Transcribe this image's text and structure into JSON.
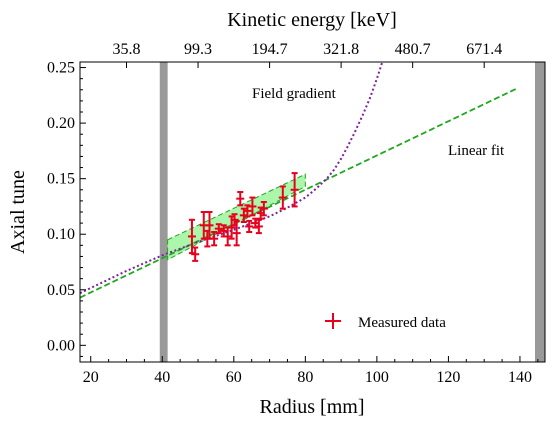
{
  "chart_data": {
    "type": "scatter",
    "xlabel": "Radius [mm]",
    "ylabel": "Axial tune",
    "top_axis_label": "Kinetic energy [keV]",
    "xlim": [
      17,
      147
    ],
    "ylim": [
      -0.015,
      0.255
    ],
    "x_ticks": [
      20,
      40,
      60,
      80,
      100,
      120,
      140
    ],
    "y_ticks": [
      0.0,
      0.05,
      0.1,
      0.15,
      0.2,
      0.25
    ],
    "y_tick_labels": [
      "0.00",
      "0.05",
      "0.10",
      "0.15",
      "0.20",
      "0.25"
    ],
    "top_ticks": [
      {
        "x": 30,
        "label": "35.8"
      },
      {
        "x": 50,
        "label": "99.3"
      },
      {
        "x": 70,
        "label": "194.7"
      },
      {
        "x": 90,
        "label": "321.8"
      },
      {
        "x": 110,
        "label": "480.7"
      },
      {
        "x": 130,
        "label": "671.4"
      }
    ],
    "shaded_bands": [
      {
        "x0": 39.3,
        "x1": 41.5
      },
      {
        "x0": 144.2,
        "x1": 147
      }
    ],
    "series": [
      {
        "name": "Measured data",
        "kind": "errorbar",
        "color": "#e8001c",
        "points": [
          {
            "x": 48.3,
            "y": 0.098,
            "err": 0.015
          },
          {
            "x": 49.2,
            "y": 0.082,
            "err": 0.006
          },
          {
            "x": 51.6,
            "y": 0.108,
            "err": 0.012
          },
          {
            "x": 52.6,
            "y": 0.096,
            "err": 0.007
          },
          {
            "x": 53.2,
            "y": 0.108,
            "err": 0.012
          },
          {
            "x": 54.5,
            "y": 0.096,
            "err": 0.006
          },
          {
            "x": 55.8,
            "y": 0.105,
            "err": 0.004
          },
          {
            "x": 57.2,
            "y": 0.103,
            "err": 0.005
          },
          {
            "x": 58.3,
            "y": 0.098,
            "err": 0.008
          },
          {
            "x": 59.4,
            "y": 0.106,
            "err": 0.01
          },
          {
            "x": 60.2,
            "y": 0.113,
            "err": 0.005
          },
          {
            "x": 60.8,
            "y": 0.101,
            "err": 0.011
          },
          {
            "x": 61.8,
            "y": 0.132,
            "err": 0.006
          },
          {
            "x": 62.8,
            "y": 0.117,
            "err": 0.006
          },
          {
            "x": 63.8,
            "y": 0.121,
            "err": 0.005
          },
          {
            "x": 64.3,
            "y": 0.107,
            "err": 0.005
          },
          {
            "x": 65.2,
            "y": 0.125,
            "err": 0.008
          },
          {
            "x": 66.0,
            "y": 0.11,
            "err": 0.004
          },
          {
            "x": 67.0,
            "y": 0.107,
            "err": 0.006
          },
          {
            "x": 67.5,
            "y": 0.119,
            "err": 0.005
          },
          {
            "x": 68.4,
            "y": 0.123,
            "err": 0.006
          },
          {
            "x": 73.7,
            "y": 0.133,
            "err": 0.01
          },
          {
            "x": 77.0,
            "y": 0.14,
            "err": 0.015
          }
        ]
      },
      {
        "name": "Linear fit",
        "kind": "dashed-line",
        "color": "#1fa81f",
        "x": [
          17,
          139
        ],
        "y": [
          0.043,
          0.231
        ]
      },
      {
        "name": "Field gradient",
        "kind": "dotted-line",
        "color": "#7a229a",
        "x": [
          17,
          30,
          40,
          50,
          60,
          70,
          75,
          80,
          83,
          86,
          88,
          90,
          92,
          94,
          96,
          98,
          100,
          101.5
        ],
        "y": [
          0.047,
          0.067,
          0.081,
          0.093,
          0.104,
          0.116,
          0.124,
          0.133,
          0.141,
          0.15,
          0.158,
          0.168,
          0.18,
          0.193,
          0.207,
          0.222,
          0.24,
          0.255
        ]
      }
    ],
    "fit_band": {
      "color": "#66ee66",
      "x": [
        41.5,
        80
      ],
      "lower": [
        0.077,
        0.143
      ],
      "upper": [
        0.095,
        0.154
      ]
    },
    "annotations": {
      "field_gradient": "Field gradient",
      "linear_fit": "Linear fit",
      "measured_data": "Measured data"
    }
  }
}
